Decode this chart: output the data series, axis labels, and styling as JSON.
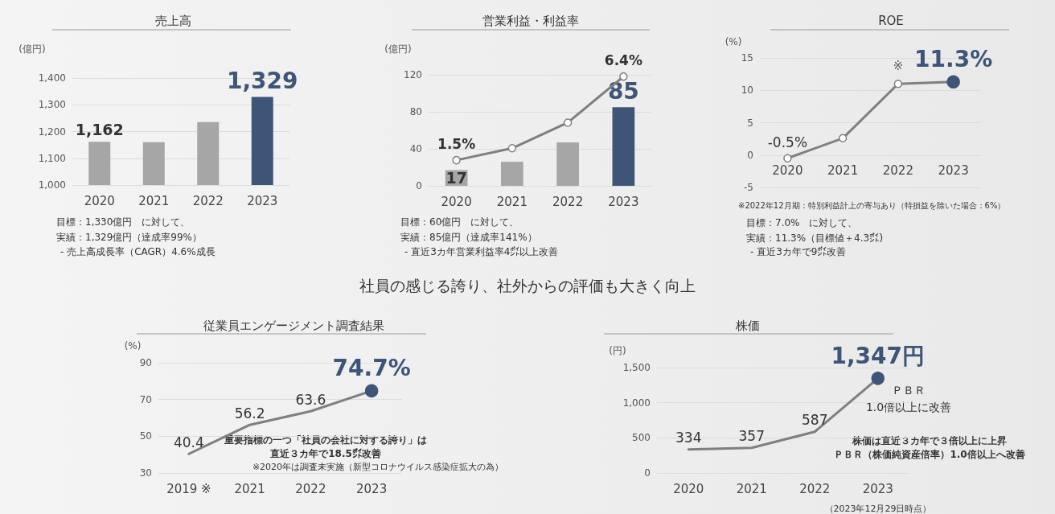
{
  "chart_data": [
    {
      "type": "bar",
      "title": "売上高",
      "ylabel": "(億円)",
      "categories": [
        "2020",
        "2021",
        "2022",
        "2023"
      ],
      "values": [
        1162,
        1160,
        1235,
        1329
      ],
      "colors": [
        "#a6a6a6",
        "#a6a6a6",
        "#a6a6a6",
        "#3e5577"
      ],
      "value_labels": [
        "1,162",
        null,
        null,
        "1,329"
      ],
      "ylim": [
        1000,
        1400
      ],
      "yticks": [
        {
          "value": 1000,
          "label": "1,000"
        },
        {
          "value": 1100,
          "label": "1,100"
        },
        {
          "value": 1200,
          "label": "1,200"
        },
        {
          "value": 1300,
          "label": "1,300"
        },
        {
          "value": 1400,
          "label": "1,400"
        }
      ],
      "grid": "y",
      "annotations": [
        "目標：1,330億円　に対して、",
        "実績：1,329億円（達成率99%）",
        "- 売上高成長率（CAGR）4.6%成長"
      ]
    },
    {
      "type": "bar",
      "title": "営業利益・利益率",
      "ylabel": "(億円)",
      "categories": [
        "2020",
        "2021",
        "2022",
        "2023"
      ],
      "series": [
        {
          "type": "bar",
          "values": [
            17,
            26,
            47,
            85
          ],
          "colors": [
            "#a6a6a6",
            "#a6a6a6",
            "#a6a6a6",
            "#3e5577"
          ],
          "value_labels": [
            "17",
            null,
            null,
            "85"
          ]
        },
        {
          "type": "line",
          "axis": "y2",
          "color": "#7f7f7f",
          "colors": [
            "#ffffff",
            "#ffffff",
            "#ffffff",
            "#ffffff"
          ],
          "values": [
            1.5,
            2.2,
            3.7,
            6.4
          ],
          "value_labels": [
            "1.5%",
            null,
            null,
            "6.4%"
          ]
        }
      ],
      "ylim": [
        0,
        120
      ],
      "yticks": [
        0,
        40,
        80,
        120
      ],
      "y2lim": [
        0,
        6.5
      ],
      "grid": "y",
      "marker": "circle",
      "annotations": [
        "目標：60億円　に対して、",
        "実績：85億円（達成率141%）",
        "- 直近3カ年営業利益率4㌽以上改善"
      ]
    },
    {
      "type": "line",
      "title": "ROE",
      "ylabel": "(%)",
      "categories": [
        "2020",
        "2021",
        "2022",
        "2023"
      ],
      "values": [
        -0.5,
        2.6,
        11.0,
        11.3
      ],
      "color": "#7f7f7f",
      "colors": [
        "#ffffff",
        "#ffffff",
        "#ffffff",
        "#3e5577"
      ],
      "value_labels": [
        "-0.5%",
        null,
        null,
        "11.3%"
      ],
      "ylim": [
        -5,
        15
      ],
      "yticks": [
        -5,
        0,
        5,
        10,
        15
      ],
      "grid": "y",
      "marker": "circle",
      "annotations": [
        {
          "text": "※",
          "x": "2022",
          "y": 11.0
        },
        "※2022年12月期：特別利益計上の寄与あり（特損益を除いた場合：6%）",
        "目標：7.0%　に対して、",
        "実績：11.3%（目標値＋4.3㌽）",
        "- 直近3カ年で9㌽改善"
      ]
    },
    {
      "type": "line",
      "title": "従業員エンゲージメント調査結果",
      "ylabel": "(%)",
      "categories": [
        "2019 ※",
        "2021",
        "2022",
        "2023"
      ],
      "values": [
        40.4,
        56.2,
        63.6,
        74.7
      ],
      "color": "#7f7f7f",
      "colors": [
        null,
        null,
        null,
        "#3e5577"
      ],
      "value_labels": [
        "40.4",
        "56.2",
        "63.6",
        "74.7%"
      ],
      "ylim": [
        30,
        90
      ],
      "yticks": [
        30,
        50,
        70,
        90
      ],
      "grid": "y",
      "annotations": [
        "社員の感じる誇り、社外からの評価も大きく向上",
        "重要指標の一つ「社員の会社に対する誇り」は",
        "直近３カ年で18.5㌽改善",
        "※2020年は調査未実施（新型コロナウイルス感染症拡大の為）"
      ]
    },
    {
      "type": "line",
      "title": "株価",
      "ylabel": "(円)",
      "categories": [
        "2020",
        "2021",
        "2022",
        "2023"
      ],
      "values": [
        334,
        357,
        587,
        1347
      ],
      "color": "#7f7f7f",
      "colors": [
        null,
        null,
        null,
        "#3e5577"
      ],
      "value_labels": [
        "334",
        "357",
        "587",
        "1,347円"
      ],
      "ylim": [
        0,
        1500
      ],
      "yticks": [
        0,
        500,
        {
          "value": 1000,
          "label": "1,000"
        },
        {
          "value": 1500,
          "label": "1,500"
        }
      ],
      "grid": "y",
      "annotations": [
        "ＰＢＲ",
        "1.0倍以上に改善",
        "株価は直近３カ年で３倍以上に上昇",
        "ＰＢＲ（株価純資産倍率）1.0倍以上へ改善",
        "（2023年12月29日時点）"
      ]
    }
  ]
}
